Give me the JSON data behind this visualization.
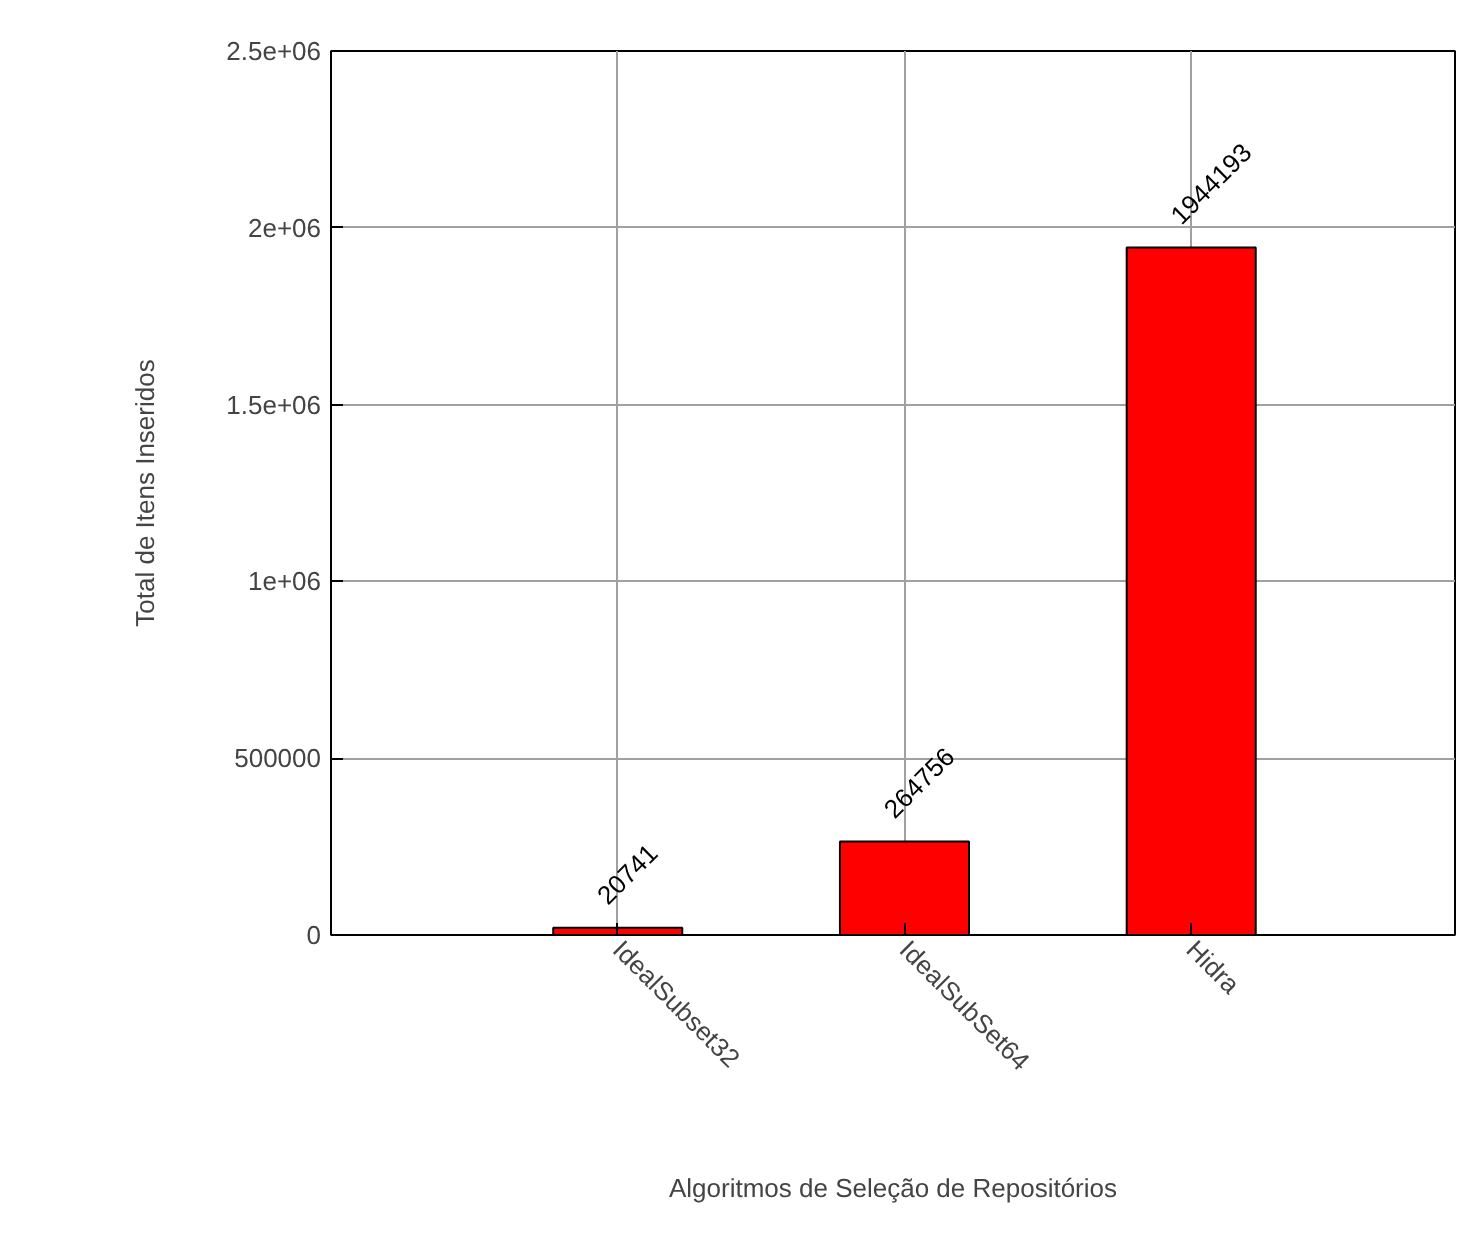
{
  "chart_data": {
    "type": "bar",
    "xlabel": "Algoritmos de Seleção de Repositórios",
    "ylabel": "Total de Itens Inseridos",
    "categories": [
      "IdealSubset32",
      "IdealSubSet64",
      "Hidra"
    ],
    "values": [
      20741,
      264756,
      1944193
    ],
    "color": "#ff0000",
    "data_labels": true,
    "ylim": [
      0,
      2500000
    ],
    "yticks": [
      0,
      500000,
      {
        "value": 1000000,
        "label": "1e+06"
      },
      {
        "value": 1500000,
        "label": "1.5e+06"
      },
      {
        "value": 2000000,
        "label": "2e+06"
      },
      {
        "value": 2500000,
        "label": "2.5e+06"
      }
    ],
    "grid": true
  }
}
